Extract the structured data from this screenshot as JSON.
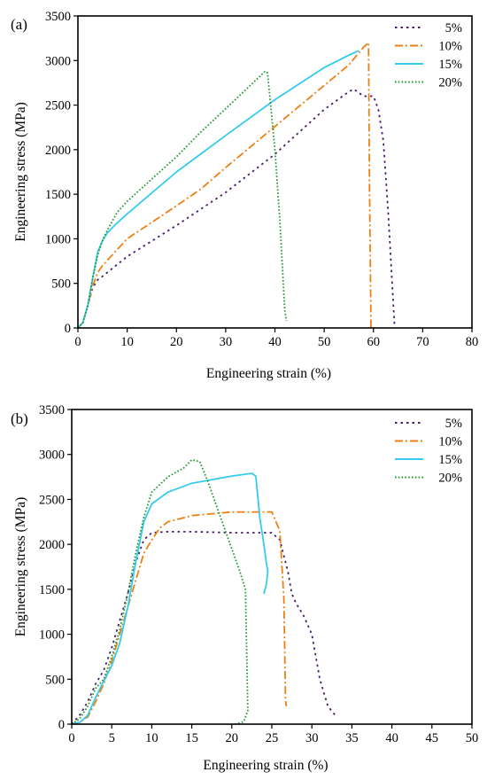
{
  "chart_data": [
    {
      "panel_label": "(a)",
      "type": "line",
      "xlabel": "Engineering  strain (%)",
      "ylabel": "Engineering stress (MPa)",
      "xlim": [
        0,
        80
      ],
      "ylim": [
        0,
        3500
      ],
      "xticks": [
        0,
        10,
        20,
        30,
        40,
        50,
        60,
        70,
        80
      ],
      "yticks": [
        0,
        500,
        1000,
        1500,
        2000,
        2500,
        3000,
        3500
      ],
      "legend_position": "top-right",
      "series": [
        {
          "name": "5%",
          "color": "#4b1d6b",
          "dash": "dot",
          "x": [
            0,
            1,
            2,
            3,
            4,
            5,
            10,
            20,
            30,
            40,
            50,
            55,
            56,
            58,
            60,
            61,
            62,
            63,
            64,
            64.3
          ],
          "y": [
            0,
            60,
            250,
            450,
            540,
            580,
            800,
            1150,
            1520,
            1950,
            2450,
            2650,
            2680,
            2600,
            2600,
            2450,
            2100,
            1300,
            300,
            0
          ]
        },
        {
          "name": "10%",
          "color": "#f07f12",
          "dash": "dashdot",
          "x": [
            0,
            1,
            2,
            3,
            4,
            5,
            10,
            20,
            25,
            30,
            40,
            50,
            55,
            58,
            59,
            59.2,
            59.5
          ],
          "y": [
            0,
            60,
            250,
            470,
            620,
            700,
            1000,
            1370,
            1560,
            1800,
            2260,
            2720,
            2950,
            3150,
            3200,
            1600,
            0
          ]
        },
        {
          "name": "15%",
          "color": "#33ccee",
          "dash": "solid",
          "x": [
            0,
            1,
            2,
            3,
            4,
            5,
            6,
            8,
            10,
            20,
            30,
            40,
            50,
            55,
            57
          ],
          "y": [
            0,
            60,
            250,
            560,
            850,
            980,
            1070,
            1180,
            1280,
            1750,
            2160,
            2560,
            2920,
            3060,
            3110
          ]
        },
        {
          "name": "20%",
          "color": "#1b9a2a",
          "dash": "dotted",
          "x": [
            0,
            1,
            2,
            3,
            4,
            5,
            6,
            8,
            10,
            15,
            20,
            25,
            30,
            35,
            38,
            38.5,
            40,
            41,
            42,
            42.3
          ],
          "y": [
            0,
            60,
            250,
            560,
            820,
            980,
            1100,
            1300,
            1420,
            1670,
            1920,
            2200,
            2460,
            2720,
            2880,
            2860,
            2000,
            1200,
            200,
            80
          ]
        }
      ]
    },
    {
      "panel_label": "(b)",
      "type": "line",
      "xlabel": "Engineering strain (%)",
      "ylabel": "Engineering stress (MPa)",
      "xlim": [
        0,
        50
      ],
      "ylim": [
        0,
        3500
      ],
      "xticks": [
        0,
        5,
        10,
        15,
        20,
        25,
        30,
        35,
        40,
        45,
        50
      ],
      "yticks": [
        0,
        500,
        1000,
        1500,
        2000,
        2500,
        3000,
        3500
      ],
      "legend_position": "top-right",
      "series": [
        {
          "name": "5%",
          "color": "#4b1d6b",
          "dash": "dot",
          "x": [
            0,
            1,
            2,
            3,
            4,
            5,
            6,
            7,
            8,
            9,
            10,
            12,
            15,
            20,
            25,
            26,
            27,
            27.5,
            28,
            29,
            30,
            31,
            32,
            33
          ],
          "y": [
            0,
            100,
            250,
            450,
            600,
            850,
            1150,
            1450,
            1800,
            2050,
            2130,
            2140,
            2140,
            2130,
            2130,
            2050,
            1700,
            1450,
            1350,
            1200,
            1000,
            500,
            200,
            90
          ]
        },
        {
          "name": "10%",
          "color": "#f07f12",
          "dash": "dashdot",
          "x": [
            0,
            1,
            2,
            3,
            4,
            5,
            6,
            7,
            8,
            9,
            10,
            11,
            12,
            15,
            20,
            25,
            26,
            26.5,
            26.7,
            26.8
          ],
          "y": [
            0,
            20,
            80,
            250,
            450,
            700,
            1000,
            1300,
            1600,
            1900,
            2050,
            2180,
            2250,
            2320,
            2360,
            2360,
            2150,
            1400,
            300,
            200
          ]
        },
        {
          "name": "15%",
          "color": "#33ccee",
          "dash": "solid",
          "x": [
            0,
            1,
            2,
            3,
            4,
            5,
            6,
            7,
            8,
            9,
            10,
            12,
            15,
            20,
            22.5,
            23,
            23.5,
            24,
            24.3,
            24.5,
            24.3,
            24
          ],
          "y": [
            0,
            20,
            100,
            300,
            480,
            650,
            900,
            1300,
            1800,
            2250,
            2450,
            2580,
            2680,
            2760,
            2790,
            2760,
            2300,
            2000,
            1800,
            1700,
            1550,
            1450
          ]
        },
        {
          "name": "20%",
          "color": "#1b9a2a",
          "dash": "dotted",
          "x": [
            0,
            1,
            2,
            3,
            4,
            5,
            6,
            7,
            8,
            9,
            10,
            12,
            14,
            15,
            16,
            17,
            18,
            19,
            20,
            21,
            21.7,
            22,
            21.5,
            20.5
          ],
          "y": [
            0,
            60,
            200,
            400,
            500,
            750,
            1050,
            1450,
            1900,
            2300,
            2580,
            2750,
            2850,
            2940,
            2920,
            2700,
            2450,
            2200,
            1950,
            1700,
            1500,
            150,
            30,
            0
          ]
        }
      ]
    }
  ]
}
